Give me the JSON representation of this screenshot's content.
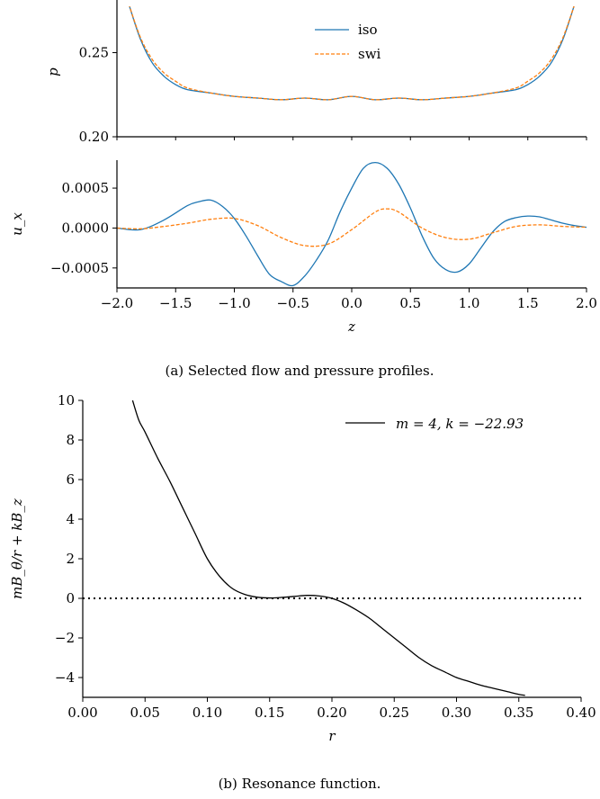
{
  "chart_data": [
    {
      "id": "p",
      "type": "line",
      "ylabel": "p",
      "xlim": [
        -2.0,
        2.0
      ],
      "ylim": [
        0.2,
        0.277
      ],
      "yticks": [
        0.2,
        0.25
      ],
      "ytick_labels": [
        "0.20",
        "0.25"
      ],
      "grid": false,
      "legend": "top-center",
      "series": [
        {
          "name": "iso",
          "color": "#1f77b4",
          "dash": "solid",
          "x": [
            -1.9,
            -1.8,
            -1.7,
            -1.6,
            -1.5,
            -1.4,
            -1.2,
            -1.0,
            -0.8,
            -0.6,
            -0.4,
            -0.2,
            0.0,
            0.2,
            0.4,
            0.6,
            0.8,
            1.0,
            1.2,
            1.4,
            1.5,
            1.6,
            1.7,
            1.8,
            1.9
          ],
          "y": [
            0.279,
            0.258,
            0.244,
            0.236,
            0.231,
            0.228,
            0.226,
            0.224,
            0.223,
            0.222,
            0.223,
            0.222,
            0.224,
            0.222,
            0.223,
            0.222,
            0.223,
            0.224,
            0.226,
            0.228,
            0.231,
            0.236,
            0.244,
            0.258,
            0.279
          ]
        },
        {
          "name": "swi",
          "color": "#ff7f0e",
          "dash": "dashed",
          "x": [
            -1.9,
            -1.8,
            -1.7,
            -1.6,
            -1.5,
            -1.4,
            -1.2,
            -1.0,
            -0.8,
            -0.6,
            -0.4,
            -0.2,
            0.0,
            0.2,
            0.4,
            0.6,
            0.8,
            1.0,
            1.2,
            1.4,
            1.5,
            1.6,
            1.7,
            1.8,
            1.9
          ],
          "y": [
            0.279,
            0.259,
            0.246,
            0.238,
            0.233,
            0.229,
            0.226,
            0.224,
            0.223,
            0.222,
            0.223,
            0.222,
            0.224,
            0.222,
            0.223,
            0.222,
            0.223,
            0.224,
            0.226,
            0.229,
            0.233,
            0.238,
            0.246,
            0.259,
            0.279
          ]
        }
      ]
    },
    {
      "id": "ux",
      "type": "line",
      "xlabel": "z",
      "ylabel": "u_x",
      "xlim": [
        -2.0,
        2.0
      ],
      "ylim": [
        -0.00075,
        0.00085
      ],
      "xticks": [
        -2.0,
        -1.5,
        -1.0,
        -0.5,
        0.0,
        0.5,
        1.0,
        1.5,
        2.0
      ],
      "xtick_labels": [
        "−2.0",
        "−1.5",
        "−1.0",
        "−0.5",
        "0.0",
        "0.5",
        "1.0",
        "1.5",
        "2.0"
      ],
      "yticks": [
        -0.0005,
        0.0,
        0.0005
      ],
      "ytick_labels": [
        "−0.0005",
        "0.0000",
        "0.0005"
      ],
      "grid": false,
      "series": [
        {
          "name": "iso",
          "color": "#1f77b4",
          "dash": "solid",
          "x": [
            -2.0,
            -1.8,
            -1.6,
            -1.4,
            -1.3,
            -1.2,
            -1.1,
            -1.0,
            -0.9,
            -0.8,
            -0.7,
            -0.6,
            -0.5,
            -0.4,
            -0.3,
            -0.2,
            -0.1,
            0.0,
            0.1,
            0.2,
            0.3,
            0.4,
            0.5,
            0.6,
            0.7,
            0.8,
            0.9,
            1.0,
            1.1,
            1.2,
            1.3,
            1.4,
            1.5,
            1.6,
            1.7,
            1.8,
            1.9,
            2.0
          ],
          "y": [
            0.0,
            -2e-05,
            0.0001,
            0.00028,
            0.00033,
            0.00035,
            0.00027,
            0.00012,
            -0.0001,
            -0.00035,
            -0.00058,
            -0.00067,
            -0.00072,
            -0.0006,
            -0.0004,
            -0.00015,
            0.0002,
            0.0005,
            0.00075,
            0.00082,
            0.00075,
            0.00055,
            0.00025,
            -0.0001,
            -0.00038,
            -0.00052,
            -0.00055,
            -0.00045,
            -0.00025,
            -5e-05,
            8e-05,
            0.00013,
            0.00015,
            0.00014,
            0.0001,
            6e-05,
            3e-05,
            1e-05
          ]
        },
        {
          "name": "swi",
          "color": "#ff7f0e",
          "dash": "dashed",
          "x": [
            -2.0,
            -1.8,
            -1.6,
            -1.4,
            -1.2,
            -1.0,
            -0.8,
            -0.6,
            -0.4,
            -0.2,
            0.0,
            0.2,
            0.3,
            0.4,
            0.6,
            0.8,
            1.0,
            1.2,
            1.4,
            1.6,
            1.8,
            2.0
          ],
          "y": [
            0.0,
            -1e-05,
            2e-05,
            6e-05,
            0.00011,
            0.00012,
            3e-05,
            -0.00012,
            -0.00022,
            -0.0002,
            -2e-05,
            0.0002,
            0.00024,
            0.0002,
            0.0,
            -0.00012,
            -0.00014,
            -6e-05,
            2e-05,
            4e-05,
            2e-05,
            1e-05
          ]
        }
      ]
    },
    {
      "id": "resonance",
      "type": "line",
      "xlabel": "r",
      "ylabel": "mB_θ/r + kB_z",
      "xlim": [
        0.0,
        0.4
      ],
      "ylim": [
        -5,
        10
      ],
      "xticks": [
        0.0,
        0.05,
        0.1,
        0.15,
        0.2,
        0.25,
        0.3,
        0.35,
        0.4
      ],
      "xtick_labels": [
        "0.00",
        "0.05",
        "0.10",
        "0.15",
        "0.20",
        "0.25",
        "0.30",
        "0.35",
        "0.40"
      ],
      "yticks": [
        -4,
        -2,
        0,
        2,
        4,
        6,
        8,
        10
      ],
      "ytick_labels": [
        "−4",
        "−2",
        "0",
        "2",
        "4",
        "6",
        "8",
        "10"
      ],
      "grid": false,
      "legend": "top-right",
      "zero_line": "dotted",
      "series": [
        {
          "name": "m = 4, k = −22.93",
          "color": "#000000",
          "dash": "solid",
          "x": [
            0.04,
            0.045,
            0.05,
            0.06,
            0.07,
            0.08,
            0.09,
            0.1,
            0.11,
            0.12,
            0.13,
            0.14,
            0.15,
            0.16,
            0.17,
            0.18,
            0.19,
            0.2,
            0.21,
            0.22,
            0.23,
            0.24,
            0.25,
            0.26,
            0.27,
            0.28,
            0.29,
            0.3,
            0.31,
            0.32,
            0.33,
            0.34,
            0.35,
            0.355
          ],
          "y": [
            10.0,
            9.0,
            8.4,
            7.1,
            5.9,
            4.6,
            3.3,
            2.0,
            1.1,
            0.5,
            0.2,
            0.06,
            0.02,
            0.05,
            0.1,
            0.15,
            0.12,
            0.0,
            -0.25,
            -0.6,
            -1.0,
            -1.5,
            -2.0,
            -2.5,
            -3.0,
            -3.4,
            -3.7,
            -4.0,
            -4.2,
            -4.4,
            -4.55,
            -4.7,
            -4.85,
            -4.9
          ]
        }
      ]
    }
  ],
  "captions": {
    "a": "(a) Selected flow and pressure profiles.",
    "b": "(b) Resonance function."
  }
}
